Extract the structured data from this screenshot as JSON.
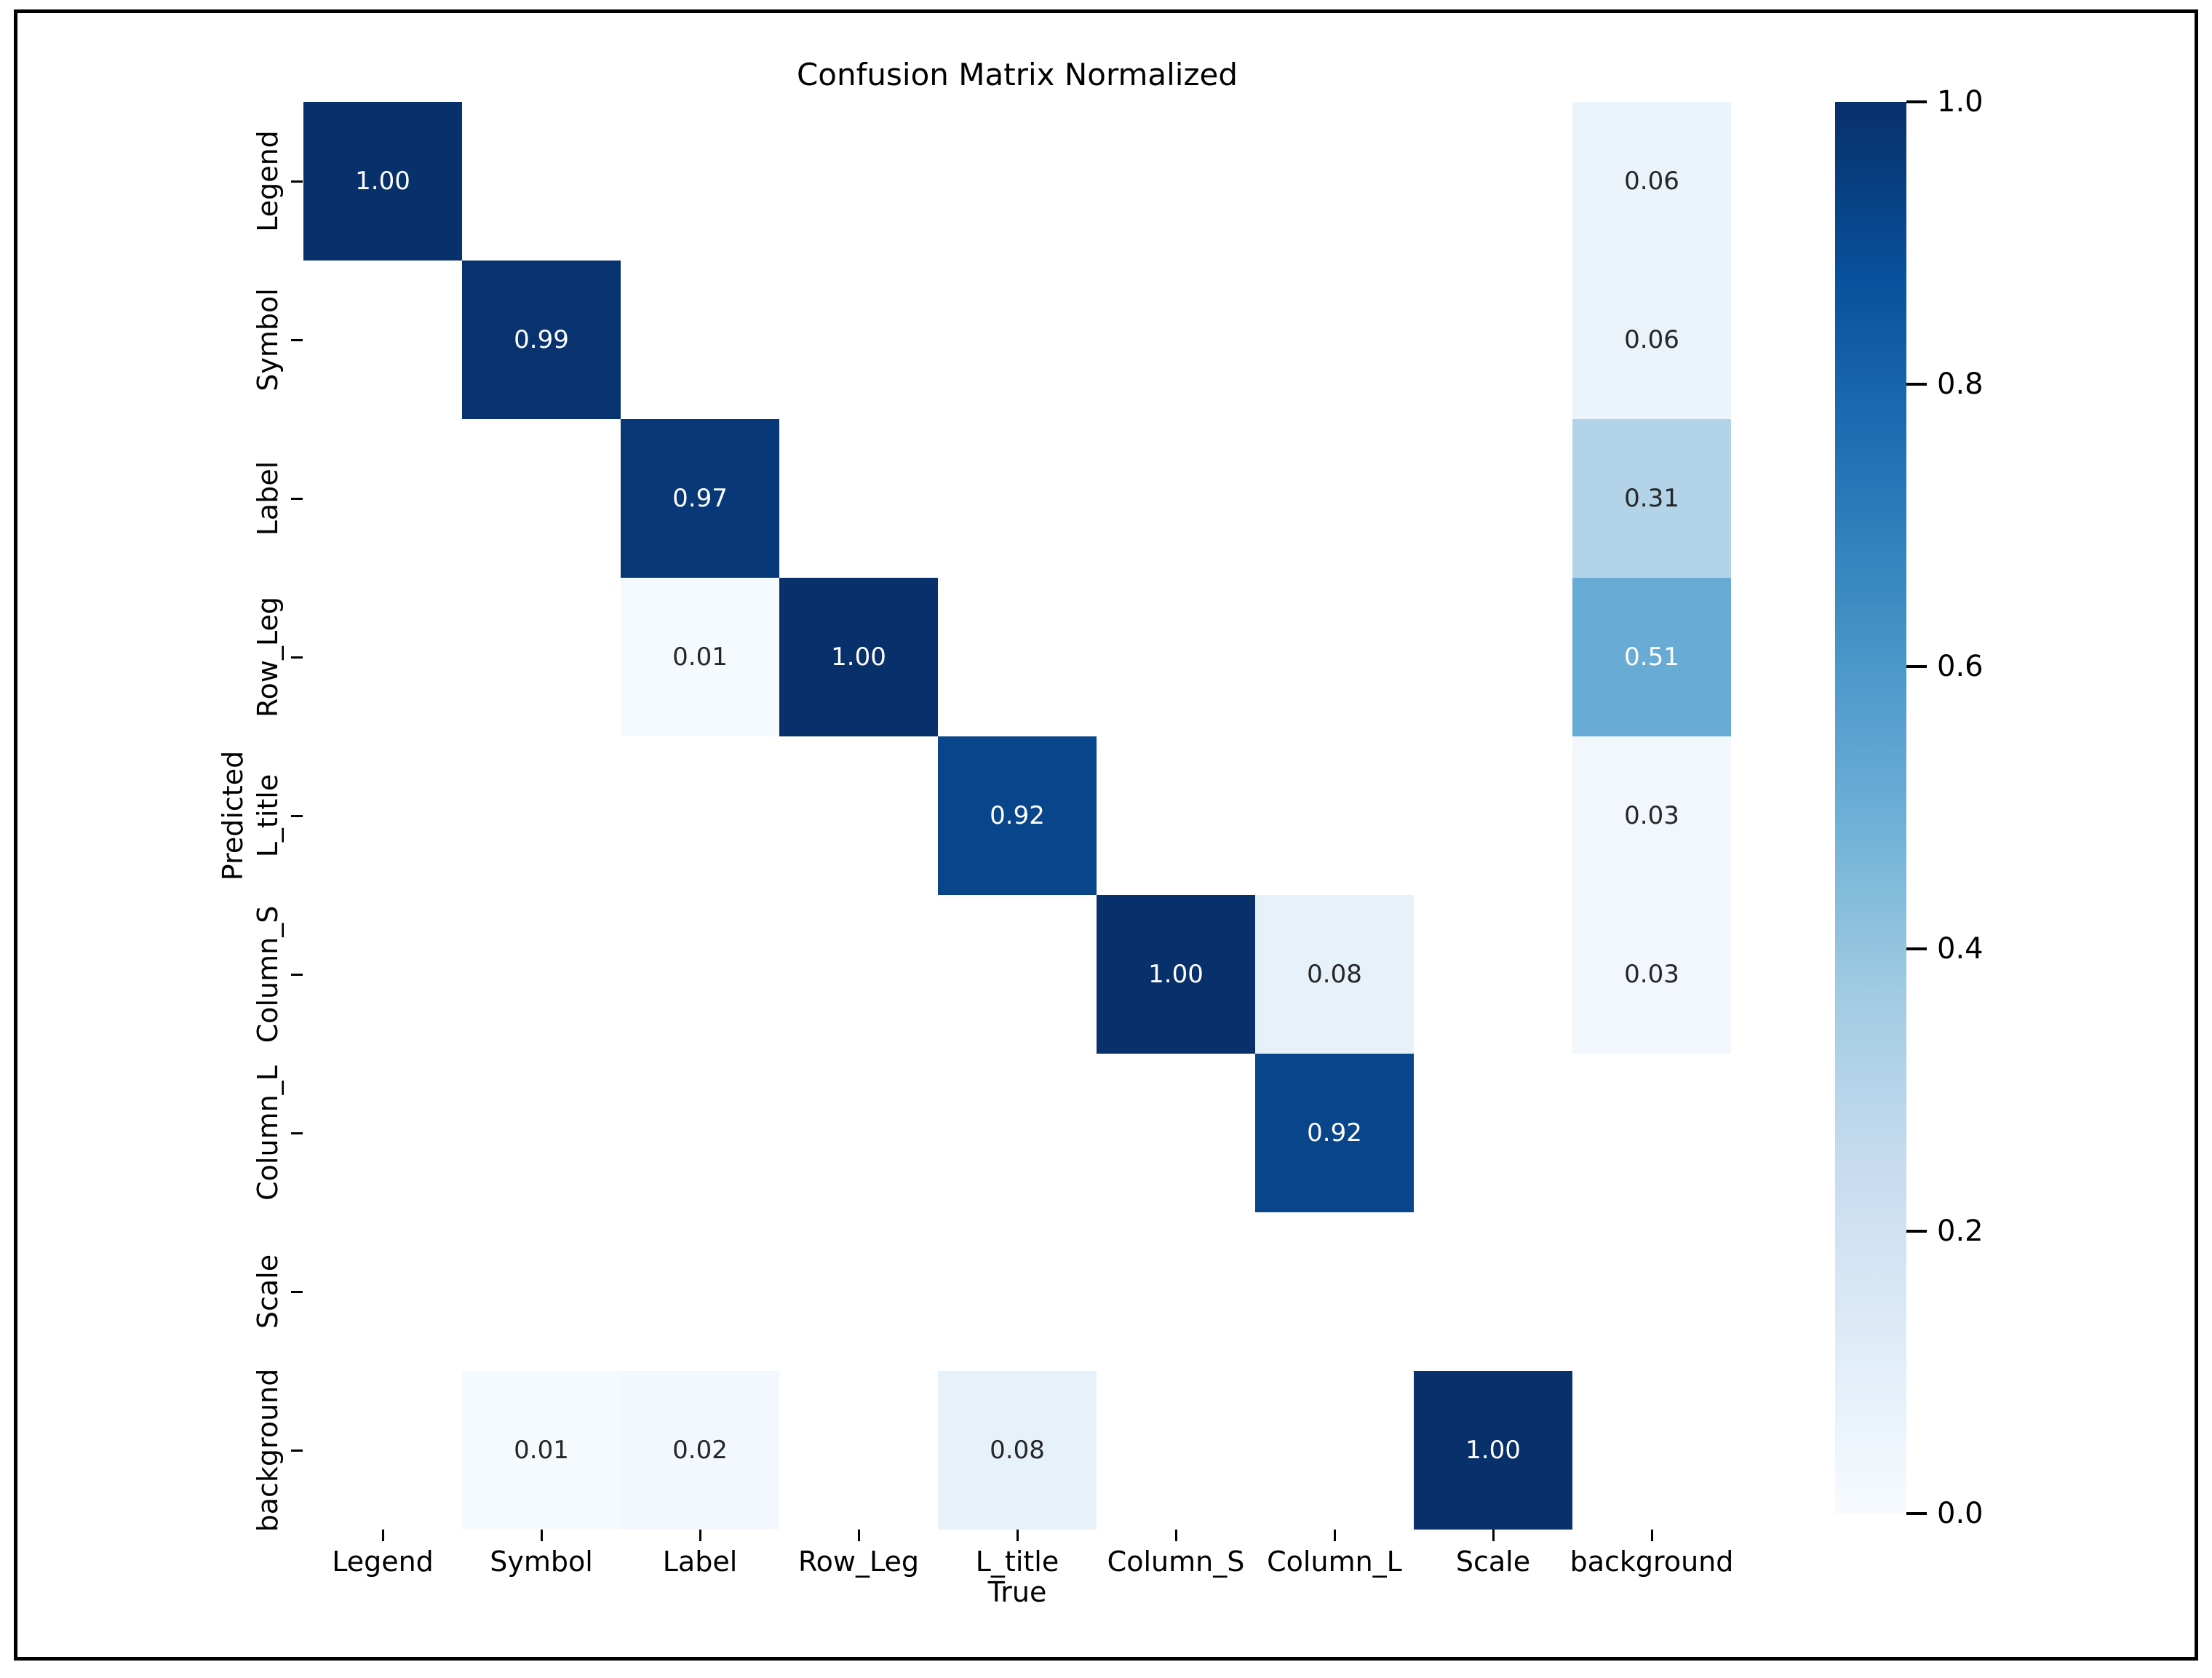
{
  "figure": {
    "title": "Confusion Matrix Normalized",
    "xlabel": "True",
    "ylabel": "Predicted"
  },
  "chart_data": {
    "type": "heatmap",
    "title": "Confusion Matrix Normalized",
    "xlabel": "True",
    "ylabel": "Predicted",
    "x_categories": [
      "Legend",
      "Symbol",
      "Label",
      "Row_Leg",
      "L_title",
      "Column_S",
      "Column_L",
      "Scale",
      "background"
    ],
    "y_categories": [
      "Legend",
      "Symbol",
      "Label",
      "Row_Leg",
      "L_title",
      "Column_S",
      "Column_L",
      "Scale",
      "background"
    ],
    "value_range": [
      0.0,
      1.0
    ],
    "missing_cell_color": "#ffffff",
    "annotation_dark_text_color": "#262626",
    "annotation_light_text_color": "#ffffff",
    "cells": [
      {
        "row": 0,
        "col": 0,
        "value": 1.0,
        "label": "1.00"
      },
      {
        "row": 0,
        "col": 8,
        "value": 0.06,
        "label": "0.06"
      },
      {
        "row": 1,
        "col": 1,
        "value": 0.99,
        "label": "0.99"
      },
      {
        "row": 1,
        "col": 8,
        "value": 0.06,
        "label": "0.06"
      },
      {
        "row": 2,
        "col": 2,
        "value": 0.97,
        "label": "0.97"
      },
      {
        "row": 2,
        "col": 8,
        "value": 0.31,
        "label": "0.31"
      },
      {
        "row": 3,
        "col": 2,
        "value": 0.01,
        "label": "0.01"
      },
      {
        "row": 3,
        "col": 3,
        "value": 1.0,
        "label": "1.00"
      },
      {
        "row": 3,
        "col": 8,
        "value": 0.51,
        "label": "0.51"
      },
      {
        "row": 4,
        "col": 4,
        "value": 0.92,
        "label": "0.92"
      },
      {
        "row": 4,
        "col": 8,
        "value": 0.03,
        "label": "0.03"
      },
      {
        "row": 5,
        "col": 5,
        "value": 1.0,
        "label": "1.00"
      },
      {
        "row": 5,
        "col": 6,
        "value": 0.08,
        "label": "0.08"
      },
      {
        "row": 5,
        "col": 8,
        "value": 0.03,
        "label": "0.03"
      },
      {
        "row": 6,
        "col": 6,
        "value": 0.92,
        "label": "0.92"
      },
      {
        "row": 8,
        "col": 1,
        "value": 0.01,
        "label": "0.01"
      },
      {
        "row": 8,
        "col": 2,
        "value": 0.02,
        "label": "0.02"
      },
      {
        "row": 8,
        "col": 4,
        "value": 0.08,
        "label": "0.08"
      },
      {
        "row": 8,
        "col": 7,
        "value": 1.0,
        "label": "1.00"
      }
    ],
    "colormap": {
      "name": "Blues",
      "stops": [
        {
          "pos": 0.0,
          "color": "#f7fbff"
        },
        {
          "pos": 0.125,
          "color": "#deebf7"
        },
        {
          "pos": 0.25,
          "color": "#c6dbef"
        },
        {
          "pos": 0.375,
          "color": "#9ecae1"
        },
        {
          "pos": 0.5,
          "color": "#6baed6"
        },
        {
          "pos": 0.625,
          "color": "#4292c6"
        },
        {
          "pos": 0.75,
          "color": "#2171b5"
        },
        {
          "pos": 0.875,
          "color": "#08519c"
        },
        {
          "pos": 1.0,
          "color": "#08306b"
        }
      ]
    },
    "colorbar": {
      "min": 0.0,
      "max": 1.0,
      "ticks": [
        {
          "value": 1.0,
          "label": "1.0"
        },
        {
          "value": 0.8,
          "label": "0.8"
        },
        {
          "value": 0.6,
          "label": "0.6"
        },
        {
          "value": 0.4,
          "label": "0.4"
        },
        {
          "value": 0.2,
          "label": "0.2"
        },
        {
          "value": 0.0,
          "label": "0.0"
        }
      ]
    }
  }
}
